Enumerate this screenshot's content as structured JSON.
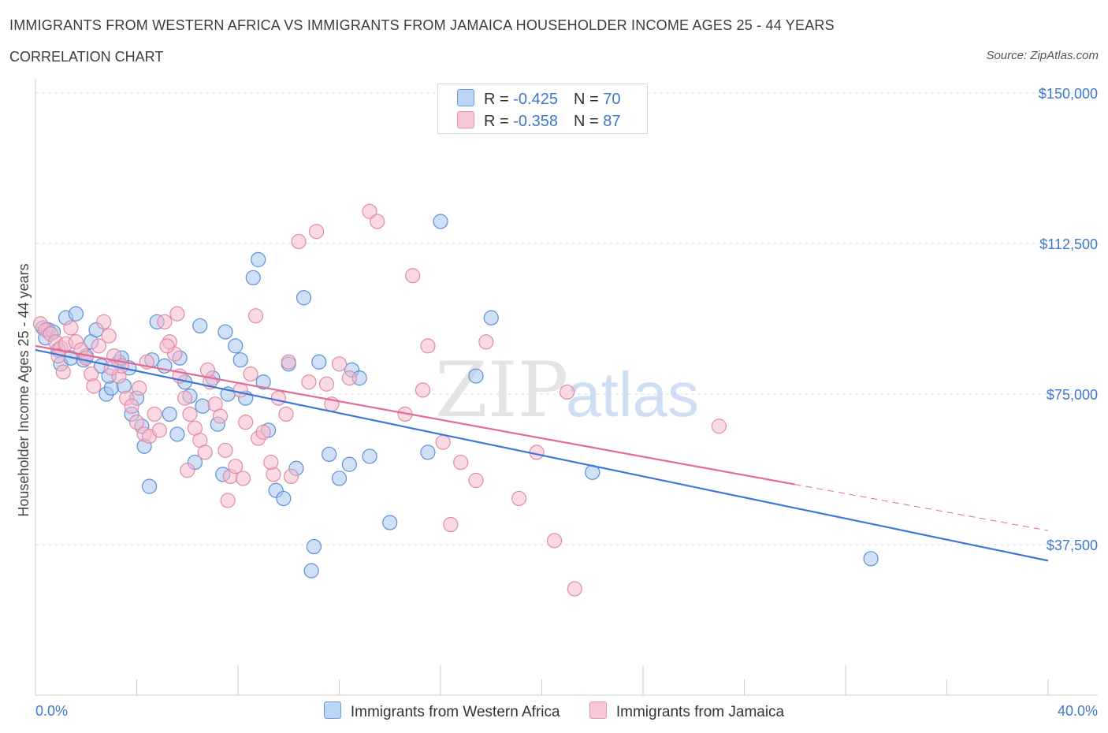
{
  "header": {
    "title": "IMMIGRANTS FROM WESTERN AFRICA VS IMMIGRANTS FROM JAMAICA HOUSEHOLDER INCOME AGES 25 - 44 YEARS",
    "subtitle": "CORRELATION CHART",
    "source": "Source: ZipAtlas.com"
  },
  "legend": {
    "blue": {
      "r_label": "R = ",
      "r_value": "-0.425",
      "n_label": "N = ",
      "n_value": "70"
    },
    "pink": {
      "r_label": "R = ",
      "r_value": "-0.358",
      "n_label": "N = ",
      "n_value": "87"
    }
  },
  "colors": {
    "blue_fill": "#a9c8f0",
    "blue_stroke": "#5b8fd6",
    "blue_line": "#3c78d8",
    "pink_fill": "#f5b9cc",
    "pink_stroke": "#e08aa8",
    "pink_line": "#e46a95",
    "grid": "#dddddd",
    "axis_text": "#3d79c8"
  },
  "chart_data": {
    "type": "scatter",
    "xlabel": "",
    "ylabel": "Householder Income Ages 25 - 44 years",
    "x_tick_labels": [
      "0.0%",
      "40.0%"
    ],
    "y_tick_labels": [
      "$37,500",
      "$75,000",
      "$112,500",
      "$150,000"
    ],
    "xlim": [
      0,
      40
    ],
    "ylim": [
      0,
      150000
    ],
    "grid": true,
    "legend_position": "top-center",
    "series": [
      {
        "name": "Immigrants from Western Africa",
        "color": "#5b8fd6",
        "trend": {
          "x": [
            0,
            40
          ],
          "y": [
            86000,
            33500
          ]
        },
        "points": [
          [
            0.3,
            91500
          ],
          [
            0.4,
            89000
          ],
          [
            0.5,
            91000
          ],
          [
            0.7,
            90500
          ],
          [
            1.0,
            82500
          ],
          [
            1.2,
            94000
          ],
          [
            1.4,
            84000
          ],
          [
            1.6,
            95000
          ],
          [
            1.9,
            83500
          ],
          [
            2.2,
            88000
          ],
          [
            2.4,
            91000
          ],
          [
            2.6,
            82000
          ],
          [
            2.8,
            75000
          ],
          [
            3.0,
            76500
          ],
          [
            3.3,
            83000
          ],
          [
            3.5,
            77000
          ],
          [
            3.7,
            81500
          ],
          [
            3.8,
            70000
          ],
          [
            4.0,
            74000
          ],
          [
            4.2,
            67000
          ],
          [
            4.3,
            62000
          ],
          [
            4.5,
            52000
          ],
          [
            4.8,
            93000
          ],
          [
            5.1,
            82000
          ],
          [
            5.3,
            70000
          ],
          [
            5.6,
            65000
          ],
          [
            5.9,
            78000
          ],
          [
            6.1,
            74500
          ],
          [
            6.3,
            58000
          ],
          [
            6.6,
            72000
          ],
          [
            7.0,
            79000
          ],
          [
            7.2,
            67500
          ],
          [
            7.4,
            55000
          ],
          [
            7.6,
            75000
          ],
          [
            7.9,
            87000
          ],
          [
            8.1,
            83500
          ],
          [
            8.3,
            74000
          ],
          [
            8.6,
            104000
          ],
          [
            8.8,
            108500
          ],
          [
            9.2,
            66000
          ],
          [
            9.5,
            51000
          ],
          [
            9.8,
            49000
          ],
          [
            10.0,
            82500
          ],
          [
            10.3,
            56500
          ],
          [
            10.6,
            99000
          ],
          [
            11.0,
            37000
          ],
          [
            11.2,
            83000
          ],
          [
            11.6,
            60000
          ],
          [
            12.0,
            54000
          ],
          [
            12.5,
            81000
          ],
          [
            12.8,
            79000
          ],
          [
            13.2,
            59500
          ],
          [
            14.0,
            43000
          ],
          [
            15.5,
            60500
          ],
          [
            16.0,
            118000
          ],
          [
            17.4,
            79500
          ],
          [
            18.0,
            94000
          ],
          [
            22.0,
            55500
          ],
          [
            33.0,
            34000
          ],
          [
            5.7,
            84000
          ],
          [
            0.9,
            86000
          ],
          [
            2.0,
            84500
          ],
          [
            3.4,
            84000
          ],
          [
            4.6,
            83500
          ],
          [
            6.5,
            92000
          ],
          [
            7.5,
            90500
          ],
          [
            12.4,
            57500
          ],
          [
            9.0,
            78000
          ],
          [
            10.9,
            31000
          ],
          [
            2.9,
            79500
          ]
        ]
      },
      {
        "name": "Immigrants from Jamaica",
        "color": "#e08aa8",
        "trend": {
          "x": [
            0,
            30
          ],
          "y": [
            87000,
            52500
          ]
        },
        "trend_dashed": {
          "x": [
            30,
            40
          ],
          "y": [
            52500,
            41000
          ]
        },
        "points": [
          [
            0.2,
            92500
          ],
          [
            0.4,
            91000
          ],
          [
            0.6,
            90000
          ],
          [
            0.8,
            88000
          ],
          [
            1.0,
            86500
          ],
          [
            1.2,
            87500
          ],
          [
            1.4,
            91500
          ],
          [
            1.6,
            88000
          ],
          [
            1.8,
            86000
          ],
          [
            2.0,
            84000
          ],
          [
            2.2,
            80000
          ],
          [
            2.5,
            87000
          ],
          [
            2.7,
            93000
          ],
          [
            2.9,
            89500
          ],
          [
            3.1,
            84500
          ],
          [
            3.3,
            79500
          ],
          [
            3.6,
            74000
          ],
          [
            3.8,
            72000
          ],
          [
            4.0,
            68000
          ],
          [
            4.3,
            65000
          ],
          [
            4.5,
            64500
          ],
          [
            4.7,
            70000
          ],
          [
            4.9,
            66000
          ],
          [
            5.1,
            93000
          ],
          [
            5.3,
            88000
          ],
          [
            5.5,
            85000
          ],
          [
            5.7,
            79500
          ],
          [
            5.9,
            74000
          ],
          [
            6.1,
            70000
          ],
          [
            6.3,
            66500
          ],
          [
            6.5,
            63500
          ],
          [
            6.7,
            60500
          ],
          [
            6.9,
            78000
          ],
          [
            7.1,
            72500
          ],
          [
            7.3,
            69500
          ],
          [
            7.5,
            61000
          ],
          [
            7.7,
            54500
          ],
          [
            7.9,
            57000
          ],
          [
            8.1,
            76000
          ],
          [
            8.3,
            68000
          ],
          [
            8.5,
            80000
          ],
          [
            8.8,
            64000
          ],
          [
            9.0,
            65500
          ],
          [
            9.4,
            55000
          ],
          [
            9.6,
            74000
          ],
          [
            9.9,
            70000
          ],
          [
            10.1,
            54500
          ],
          [
            10.4,
            113000
          ],
          [
            10.8,
            78000
          ],
          [
            11.1,
            115500
          ],
          [
            11.5,
            77500
          ],
          [
            12.0,
            82500
          ],
          [
            12.4,
            79000
          ],
          [
            13.2,
            120500
          ],
          [
            13.5,
            118000
          ],
          [
            14.6,
            70000
          ],
          [
            14.9,
            104500
          ],
          [
            15.3,
            76000
          ],
          [
            15.5,
            87000
          ],
          [
            16.1,
            63000
          ],
          [
            16.8,
            58000
          ],
          [
            17.4,
            53500
          ],
          [
            17.8,
            88000
          ],
          [
            19.1,
            49000
          ],
          [
            19.8,
            60500
          ],
          [
            20.5,
            38500
          ],
          [
            21.0,
            75500
          ],
          [
            21.3,
            26500
          ],
          [
            27.0,
            67000
          ],
          [
            3.4,
            82000
          ],
          [
            4.1,
            76500
          ],
          [
            5.2,
            87000
          ],
          [
            6.8,
            81000
          ],
          [
            8.7,
            94500
          ],
          [
            9.3,
            58000
          ],
          [
            2.3,
            77000
          ],
          [
            1.1,
            80500
          ],
          [
            3.0,
            81500
          ],
          [
            4.4,
            83000
          ],
          [
            5.6,
            95000
          ],
          [
            6.0,
            56000
          ],
          [
            7.6,
            48500
          ],
          [
            8.2,
            54000
          ],
          [
            10.0,
            83000
          ],
          [
            11.7,
            72500
          ],
          [
            16.4,
            42500
          ],
          [
            0.9,
            84500
          ]
        ]
      }
    ]
  },
  "bottom_legend": {
    "blue_label": "Immigrants from Western Africa",
    "pink_label": "Immigrants from Jamaica"
  },
  "watermark": {
    "zip": "ZIP",
    "atlas": "atlas"
  }
}
